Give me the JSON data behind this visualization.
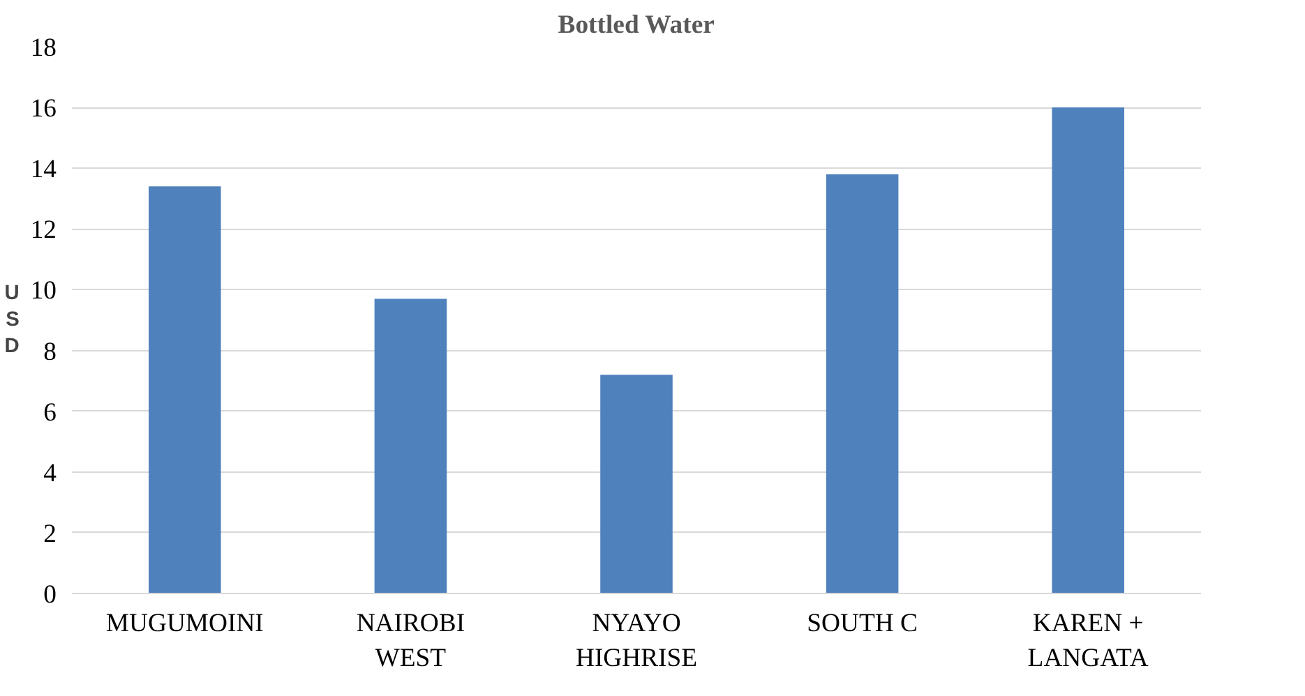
{
  "chart_data": {
    "type": "bar",
    "title": "Bottled Water",
    "ylabel": "USD",
    "categories": [
      "MUGUMOINI",
      "NAIROBI\nWEST",
      "NYAYO\nHIGHRISE",
      "SOUTH C",
      "KAREN +\nLANGATA"
    ],
    "values": [
      13.4,
      9.7,
      7.2,
      13.8,
      16.0
    ],
    "color": "#4f81bd",
    "ylim": [
      0,
      18
    ],
    "yticks": [
      0,
      2,
      4,
      6,
      8,
      10,
      12,
      14,
      16,
      18
    ],
    "grid": "y"
  }
}
